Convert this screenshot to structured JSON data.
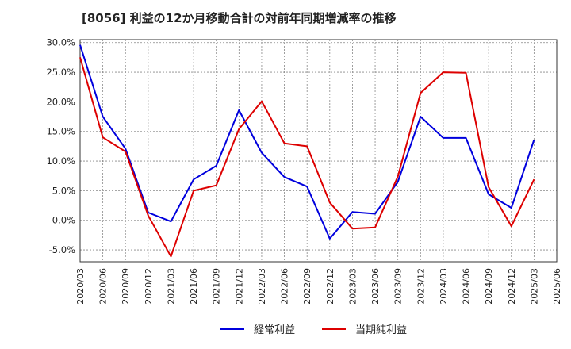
{
  "chart_data": {
    "type": "line",
    "title": "[8056]  利益の12か月移動合計の対前年同期増減率の推移",
    "xlabel": "",
    "ylabel": "",
    "ylim": [
      -7.0,
      30.5
    ],
    "yticks": [
      30,
      25,
      20,
      15,
      10,
      5,
      0,
      -5
    ],
    "ytick_labels": [
      "30.0%",
      "25.0%",
      "20.0%",
      "15.0%",
      "10.0%",
      "5.0%",
      "0.0%",
      "-5.0%"
    ],
    "categories": [
      "2020/03",
      "2020/06",
      "2020/09",
      "2020/12",
      "2021/03",
      "2021/06",
      "2021/09",
      "2021/12",
      "2022/03",
      "2022/06",
      "2022/09",
      "2022/12",
      "2023/03",
      "2023/06",
      "2023/09",
      "2023/12",
      "2024/03",
      "2024/06",
      "2024/09",
      "2024/12",
      "2025/03",
      "2025/06"
    ],
    "grid": true,
    "legend_position": "bottom",
    "series": [
      {
        "name": "経常利益",
        "color": "#0000dd",
        "values": [
          29.6,
          17.5,
          12.1,
          1.3,
          -0.2,
          6.9,
          9.2,
          18.6,
          11.4,
          7.3,
          5.7,
          -3.1,
          1.4,
          1.1,
          6.5,
          17.5,
          13.9,
          13.9,
          4.4,
          2.1,
          13.6,
          null
        ]
      },
      {
        "name": "当期純利益",
        "color": "#dd0000",
        "values": [
          27.5,
          14.0,
          11.6,
          0.8,
          -6.1,
          5.0,
          5.9,
          15.4,
          20.1,
          13.0,
          12.5,
          3.0,
          -1.4,
          -1.2,
          7.4,
          21.5,
          25.0,
          24.9,
          5.6,
          -1.0,
          6.9,
          null
        ]
      }
    ]
  }
}
